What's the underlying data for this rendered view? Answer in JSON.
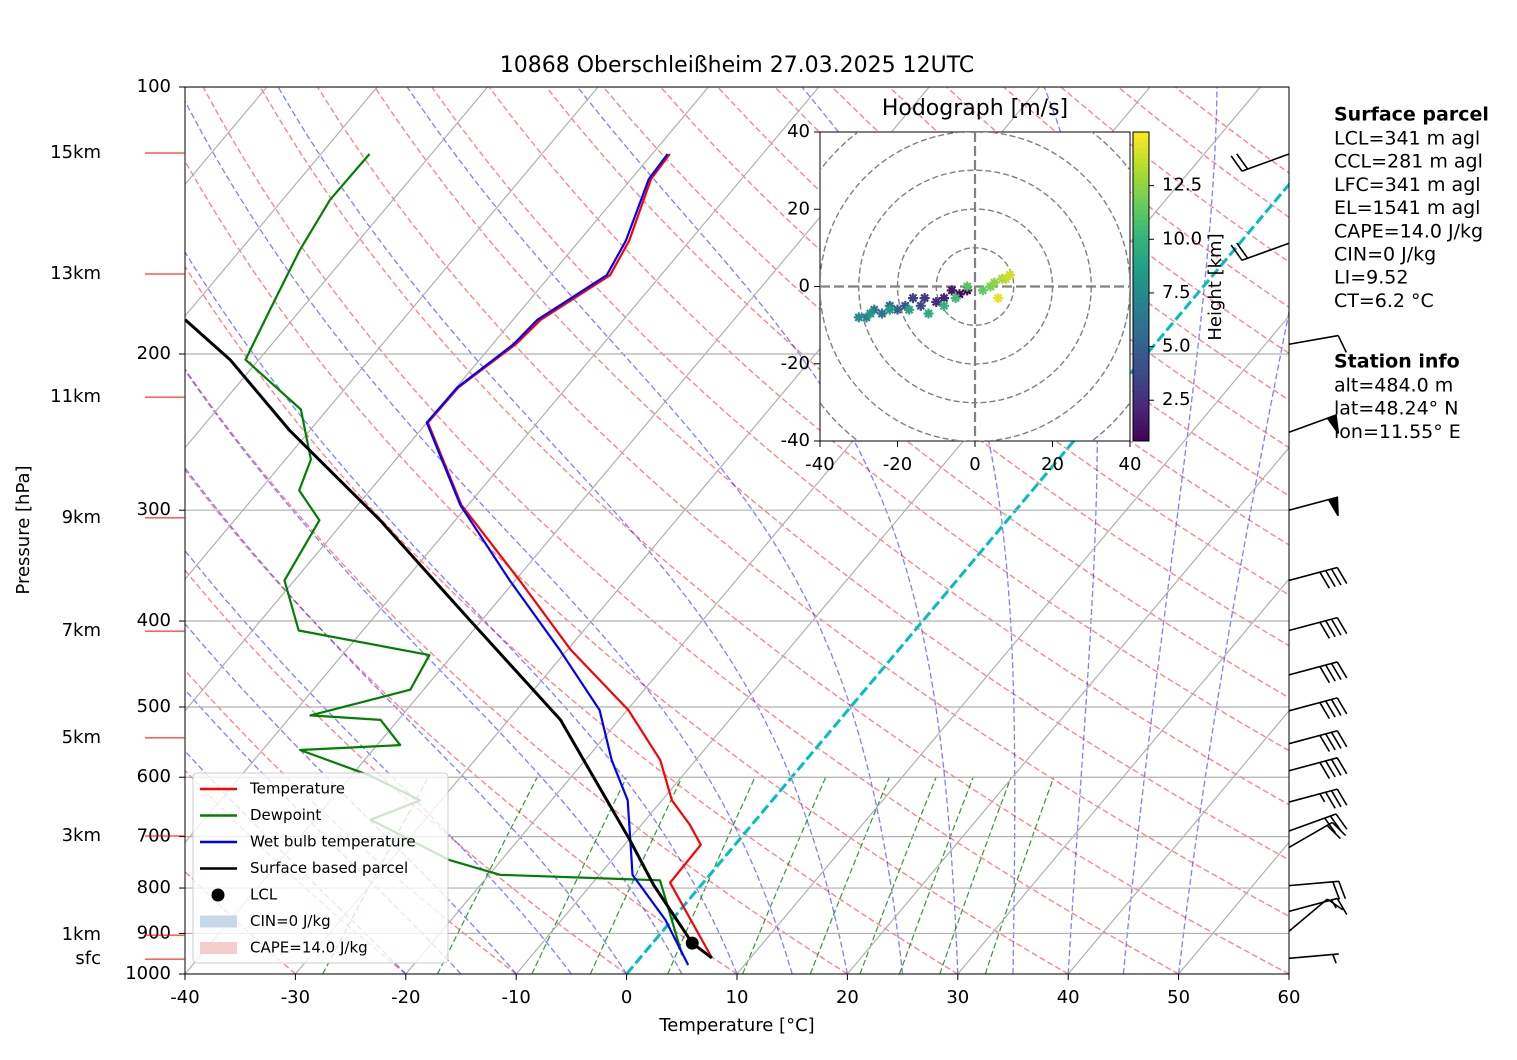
{
  "chart_data": [
    {
      "type": "skewt",
      "title": "10868 Oberschleißheim 27.03.2025 12UTC",
      "x_label": "Temperature [°C]",
      "y_label": "Pressure [hPa]",
      "xlim": [
        -40,
        60
      ],
      "xticks": [
        -40,
        -30,
        -20,
        -10,
        0,
        10,
        20,
        30,
        40,
        50,
        60
      ],
      "ylim": [
        1000,
        100
      ],
      "yticks": [
        100,
        200,
        300,
        400,
        500,
        600,
        700,
        800,
        900,
        1000
      ],
      "log_y": true,
      "grid": true,
      "legend": "lower left",
      "series": [
        {
          "name": "Temperature",
          "color": "#ff0000",
          "pressure": [
            959,
            789,
            715,
            679,
            637,
            574,
            504,
            431,
            360,
            296,
            239,
            218,
            195,
            183,
            163,
            149,
            127,
            119
          ],
          "values": [
            6.5,
            -3.0,
            -3.1,
            -5.6,
            -9.1,
            -13.2,
            -19.9,
            -29.7,
            -39.6,
            -50.6,
            -59.9,
            -59.8,
            -57.9,
            -57.5,
            -54.6,
            -55.5,
            -58.2,
            -58.4
          ]
        },
        {
          "name": "Dewpoint",
          "color": "#008000",
          "pressure": [
            952,
            784,
            773,
            744,
            670,
            637,
            597,
            559,
            552,
            517,
            511,
            478,
            437,
            410,
            360,
            308,
            285,
            263,
            231,
            203,
            178,
            153,
            134,
            119
          ],
          "values": [
            3.6,
            -4.1,
            -19.0,
            -24.7,
            -34.9,
            -31.9,
            -38.4,
            -46.6,
            -37.9,
            -41.6,
            -48.3,
            -41.2,
            -42.1,
            -55.8,
            -60.9,
            -62.3,
            -66.4,
            -67.7,
            -72.4,
            -81.2,
            -82.8,
            -84.6,
            -85.7,
            -85.6
          ]
        },
        {
          "name": "Wet bulb temperature",
          "color": "#0000ff",
          "pressure": [
            977,
            869,
            773,
            744,
            637,
            574,
            504,
            431,
            360,
            296,
            239,
            218,
            195,
            183,
            163,
            149,
            127,
            119
          ],
          "values": [
            4.9,
            -0.6,
            -7.0,
            -8.2,
            -13.1,
            -17.6,
            -22.5,
            -30.7,
            -40.5,
            -50.7,
            -60.0,
            -59.9,
            -58.1,
            -57.8,
            -54.9,
            -55.8,
            -58.4,
            -58.6
          ]
        },
        {
          "name": "Surface based parcel",
          "color": "#000000",
          "pressure": [
            959,
            923,
            794,
            706,
            517,
            399,
            308,
            244,
            203,
            183
          ],
          "values": [
            6.5,
            3.6,
            -4.3,
            -9.9,
            -25.3,
            -41.1,
            -56.8,
            -71.8,
            -82.6,
            -89.7
          ]
        }
      ],
      "lcl": {
        "name": "LCL",
        "color": "#000000",
        "pressure": 923,
        "temperature": 3.6
      },
      "shading": [
        {
          "name": "CIN=0 J/kg",
          "color": "#c6d9ea"
        },
        {
          "name": "CAPE=14.0 J/kg",
          "color": "#f5cccc"
        }
      ],
      "height_labels": [
        {
          "value": 118.7,
          "label": "15km"
        },
        {
          "value": 162.5,
          "label": "13km"
        },
        {
          "value": 223.7,
          "label": "11km"
        },
        {
          "value": 306,
          "label": "9km"
        },
        {
          "value": 410.6,
          "label": "7km"
        },
        {
          "value": 541.8,
          "label": "5km"
        },
        {
          "value": 699,
          "label": "3km"
        },
        {
          "value": 904,
          "label": "1km"
        },
        {
          "value": 962,
          "label": "sfc"
        }
      ],
      "height_label_color": "#ff0000",
      "wind_barbs": {
        "pressure": [
          119,
          150,
          195,
          245,
          300,
          360,
          410,
          460,
          505,
          550,
          590,
          640,
          690,
          720,
          795,
          850,
          895,
          960
        ],
        "speed": [
          20,
          20,
          10,
          50,
          50,
          40,
          40,
          40,
          40,
          40,
          40,
          35,
          30,
          20,
          20,
          15,
          10,
          5
        ],
        "direction": [
          250,
          250,
          80,
          70,
          75,
          75,
          75,
          75,
          75,
          75,
          75,
          75,
          70,
          60,
          85,
          75,
          50,
          85
        ]
      }
    },
    {
      "type": "hodograph",
      "title": "Hodograph [m/s]",
      "xlim": [
        -40,
        40
      ],
      "ylim": [
        -40,
        40
      ],
      "xticks": [
        -40,
        -20,
        0,
        20,
        40
      ],
      "yticks": [
        -40,
        -20,
        0,
        20,
        40
      ],
      "u": [
        -2,
        -4,
        -6,
        -8,
        -10,
        -13,
        -16,
        -14,
        -18,
        -20,
        -22,
        -24,
        -26,
        -28,
        -30,
        -27,
        -22,
        -17,
        -12,
        -8,
        -5,
        -2,
        2,
        4,
        5,
        7,
        8,
        9,
        6
      ],
      "v": [
        -1,
        -2,
        -1,
        -3,
        -4,
        -3,
        -3,
        -5,
        -5,
        -6,
        -5,
        -7,
        -6,
        -8,
        -8,
        -7,
        -6,
        -6,
        -7,
        -5,
        -3,
        0,
        -1,
        0,
        1,
        2,
        2,
        3,
        -3
      ],
      "height": [
        0.6,
        1.0,
        1.5,
        2.0,
        2.5,
        3.0,
        3.5,
        4.0,
        4.5,
        5.0,
        5.5,
        6.0,
        6.5,
        7.0,
        7.5,
        8.0,
        8.5,
        9.0,
        9.5,
        10.0,
        10.5,
        11.0,
        11.5,
        12.0,
        12.5,
        13.0,
        13.5,
        14.0,
        14.5
      ],
      "colorbar": {
        "label": "Height [km]",
        "lim": [
          0.6,
          15.0
        ],
        "colormap": "viridis",
        "ticks": [
          2.5,
          {
            "value": 5,
            "label": "5.0"
          },
          7.5,
          {
            "value": 10,
            "label": "10.0"
          },
          12.5
        ]
      }
    }
  ],
  "side_info": [
    {
      "title": "Surface parcel",
      "lines": [
        "LCL=341 m agl",
        "CCL=281 m agl",
        "LFC=341 m agl",
        "EL=1541 m agl",
        "CAPE=14.0 J/kg",
        "CIN=0 J/kg",
        "LI=9.52",
        "CT=6.2 °C"
      ]
    },
    {
      "title": "Station info",
      "lines": [
        "alt=484.0 m",
        "lat=48.24° N",
        "lon=11.55° E"
      ]
    }
  ]
}
